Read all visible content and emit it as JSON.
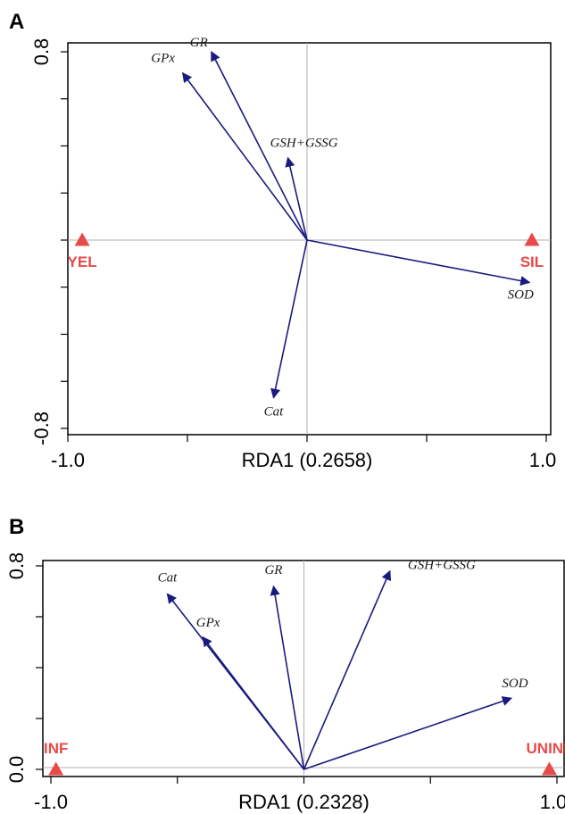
{
  "colors": {
    "vector": "#1a1a80",
    "site": "#e84a4a",
    "crosshair": "#b0b0b0",
    "frame": "#000000"
  },
  "chart_data": [
    {
      "type": "scatter",
      "panel_label": "A",
      "xlabel": "RDA1 (0.2658)",
      "ylabel": "",
      "xlim": [
        -1.0,
        1.0
      ],
      "ylim": [
        -0.8,
        0.8
      ],
      "x_tick_labels": [
        "-1.0",
        "1.0"
      ],
      "y_tick_labels": [
        "0.8",
        "-0.8"
      ],
      "vectors": [
        {
          "name": "GPx",
          "x": -0.52,
          "y": 0.71
        },
        {
          "name": "GR",
          "x": -0.4,
          "y": 0.8
        },
        {
          "name": "GSH+GSSG",
          "x": -0.08,
          "y": 0.35
        },
        {
          "name": "SOD",
          "x": 0.93,
          "y": -0.18
        },
        {
          "name": "Cat",
          "x": -0.14,
          "y": -0.67
        }
      ],
      "sites": [
        {
          "name": "YEL",
          "x": -0.94,
          "y": 0.0
        },
        {
          "name": "SIL",
          "x": 0.94,
          "y": 0.0
        }
      ]
    },
    {
      "type": "scatter",
      "panel_label": "B",
      "xlabel": "RDA1 (0.2328)",
      "ylabel": "",
      "xlim": [
        -1.0,
        1.0
      ],
      "ylim": [
        0.0,
        0.8
      ],
      "x_tick_labels": [
        "-1.0",
        "1.0"
      ],
      "y_tick_labels": [
        "0.8",
        "0.0"
      ],
      "vectors": [
        {
          "name": "Cat",
          "x": -0.54,
          "y": 0.69
        },
        {
          "name": "GPx",
          "x": -0.4,
          "y": 0.52
        },
        {
          "name": "GR",
          "x": -0.12,
          "y": 0.72
        },
        {
          "name": "GSH+GSSG",
          "x": 0.34,
          "y": 0.78
        },
        {
          "name": "SOD",
          "x": 0.82,
          "y": 0.28
        }
      ],
      "sites": [
        {
          "name": "INF",
          "x": -0.98,
          "y": 0.0
        },
        {
          "name": "UNINF",
          "x": 0.97,
          "y": 0.0
        }
      ]
    }
  ]
}
